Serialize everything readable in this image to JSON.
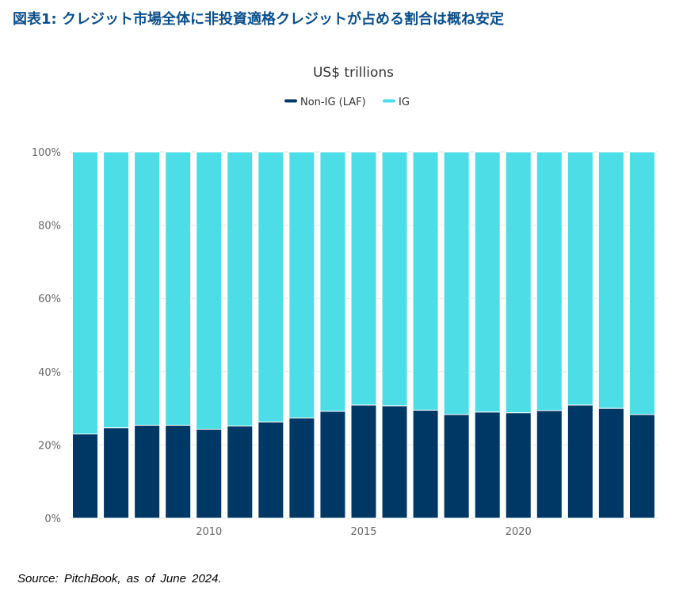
{
  "page_title": "図表1: クレジット市場全体に非投資適格クレジットが占める割合は概ね安定",
  "source": "Source: PitchBook, as of June 2024.",
  "chart_data": {
    "type": "bar",
    "stacked": true,
    "title": "US$ trillions",
    "legend_position": "top-center",
    "x": [
      2006,
      2007,
      2008,
      2009,
      2010,
      2011,
      2012,
      2013,
      2014,
      2015,
      2016,
      2017,
      2018,
      2019,
      2020,
      2021,
      2022,
      2023,
      2024
    ],
    "x_tick_labels": [
      "2010",
      "2015",
      "2020"
    ],
    "x_tick_values": [
      2010,
      2015,
      2020
    ],
    "y_tick_labels": [
      "0%",
      "20%",
      "40%",
      "60%",
      "80%",
      "100%"
    ],
    "ylim": [
      0,
      100
    ],
    "y_unit": "%",
    "grid": "horizontal",
    "series": [
      {
        "name": "Non-IG (LAF)",
        "color": "#003865",
        "values": [
          23.0,
          24.7,
          25.4,
          25.4,
          24.3,
          25.2,
          26.3,
          27.4,
          29.2,
          30.9,
          30.7,
          29.5,
          28.3,
          29.0,
          28.8,
          29.4,
          30.9,
          30.0,
          28.3
        ]
      },
      {
        "name": "IG",
        "color": "#4ddde6",
        "values": [
          77.0,
          75.3,
          74.6,
          74.6,
          75.7,
          74.8,
          73.7,
          72.6,
          70.8,
          69.1,
          69.3,
          70.5,
          71.7,
          71.0,
          71.2,
          70.6,
          69.1,
          70.0,
          71.7
        ]
      }
    ]
  }
}
